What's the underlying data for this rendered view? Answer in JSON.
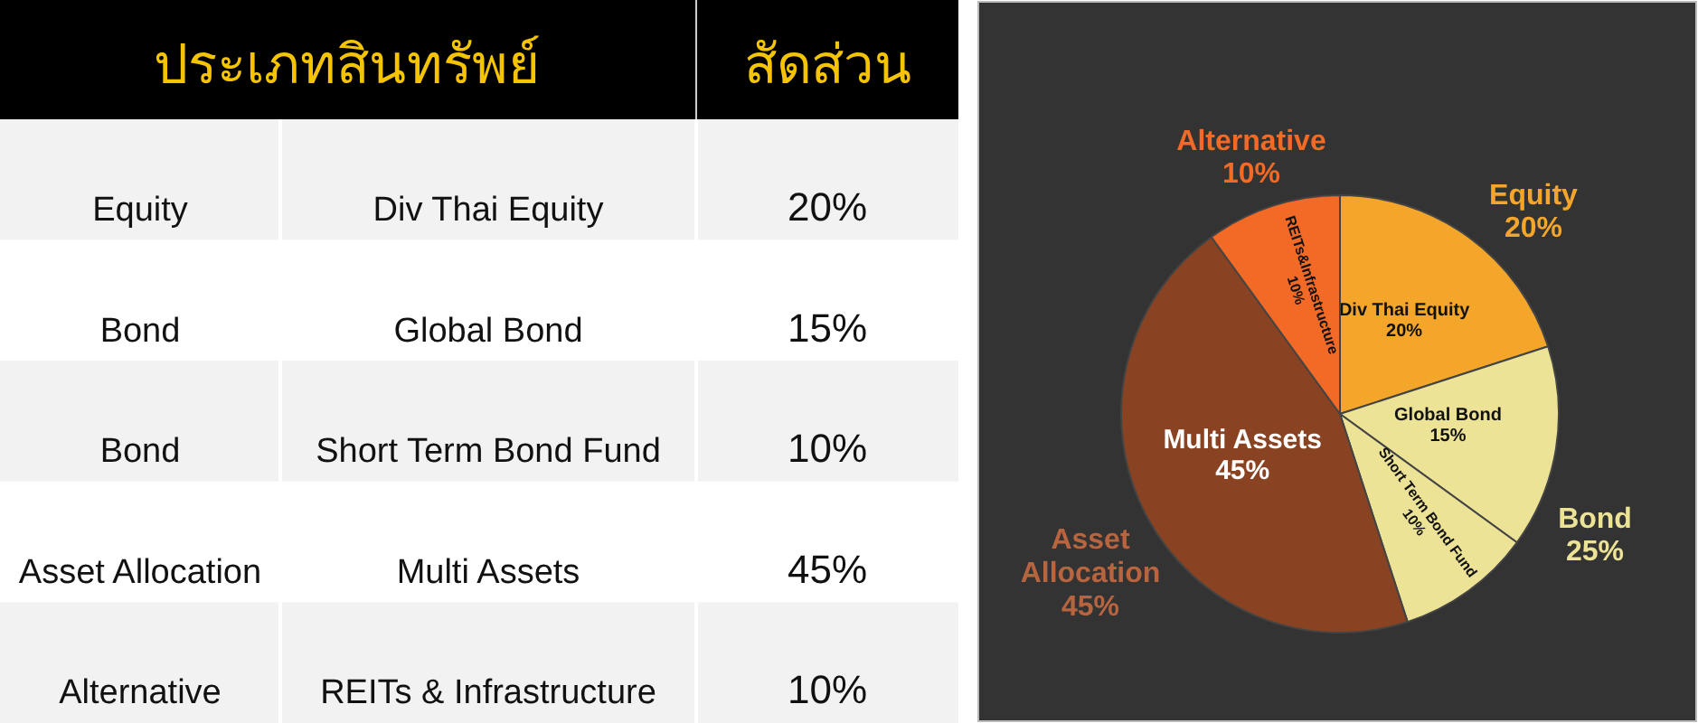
{
  "chart_data": [
    {
      "type": "other",
      "annotations": [
        "ประเภทสินทรัพย์",
        "สัดส่วน",
        "Equity",
        "Div Thai Equity",
        "20%",
        "Bond",
        "Global Bond",
        "15%",
        "Bond",
        "Short Term Bond Fund",
        "10%",
        "Asset Allocation",
        "Multi Assets",
        "45%",
        "Alternative",
        "REITs & Infrastructure",
        "10%"
      ]
    },
    {
      "type": "pie",
      "categories": [
        "Div Thai Equity",
        "Global Bond",
        "Short Term Bond Fund",
        "Multi Assets",
        "REITs&Infrastructure"
      ],
      "values": [
        20,
        15,
        10,
        45,
        10
      ],
      "colors": [
        "#f4a62a",
        "#ede396",
        "#ede396",
        "#8a4322",
        "#f26a25"
      ],
      "value_labels": [
        "20%",
        "15%",
        "10%",
        "45%",
        "10%"
      ],
      "annotations": [
        "Equity\n20%",
        "Bond\n25%",
        "Asset\nAllocation\n45%",
        "Alternative\n10%"
      ]
    }
  ]
}
